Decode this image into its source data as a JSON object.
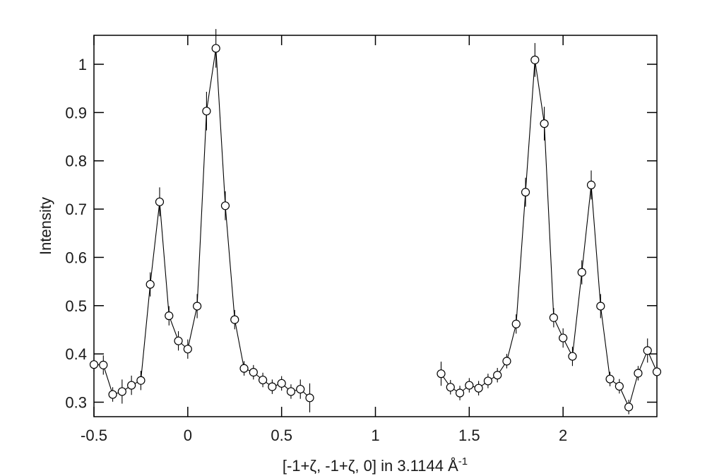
{
  "chart_data": {
    "type": "scatter",
    "title": "",
    "xlabel": "[-1+ζ, -1+ζ, 0] in 3.1144 Å",
    "xlabel_superscript": "-1",
    "ylabel": "Intensity",
    "xlim": [
      -0.5,
      2.5
    ],
    "ylim": [
      0.27,
      1.06
    ],
    "x_ticks": [
      -0.5,
      0,
      0.5,
      1,
      1.5,
      2
    ],
    "x_tick_labels": [
      "-0.5",
      "0",
      "0.5",
      "1",
      "1.5",
      "2"
    ],
    "y_ticks": [
      0.3,
      0.4,
      0.5,
      0.6,
      0.7,
      0.8,
      0.9,
      1.0
    ],
    "y_tick_labels": [
      "0.3",
      "0.4",
      "0.5",
      "0.6",
      "0.7",
      "0.8",
      "0.9",
      "1"
    ],
    "grid": false,
    "marker": "open-circle",
    "line_color": "#000000",
    "series": [
      {
        "points": [
          [
            -0.5,
            0.378,
            0.015
          ],
          [
            -0.45,
            0.377,
            0.02
          ],
          [
            -0.4,
            0.316,
            0.015
          ],
          [
            -0.35,
            0.322,
            0.025
          ],
          [
            -0.3,
            0.335,
            0.02
          ],
          [
            -0.25,
            0.345,
            0.02
          ],
          [
            -0.2,
            0.544,
            0.025
          ],
          [
            -0.15,
            0.715,
            0.03
          ],
          [
            -0.1,
            0.479,
            0.02
          ],
          [
            -0.05,
            0.427,
            0.02
          ],
          [
            0.0,
            0.41,
            0.02
          ],
          [
            0.05,
            0.499,
            0.025
          ],
          [
            0.1,
            0.903,
            0.04
          ],
          [
            0.15,
            1.033,
            0.04
          ],
          [
            0.2,
            0.707,
            0.03
          ],
          [
            0.25,
            0.471,
            0.02
          ],
          [
            0.3,
            0.37,
            0.015
          ],
          [
            0.35,
            0.362,
            0.015
          ],
          [
            0.4,
            0.346,
            0.015
          ],
          [
            0.45,
            0.332,
            0.015
          ],
          [
            0.5,
            0.339,
            0.015
          ],
          [
            0.55,
            0.322,
            0.015
          ],
          [
            0.6,
            0.327,
            0.02
          ],
          [
            0.65,
            0.309,
            0.03
          ]
        ]
      },
      {
        "points": [
          [
            1.35,
            0.359,
            0.025
          ],
          [
            1.4,
            0.331,
            0.015
          ],
          [
            1.45,
            0.319,
            0.015
          ],
          [
            1.5,
            0.335,
            0.015
          ],
          [
            1.55,
            0.329,
            0.015
          ],
          [
            1.6,
            0.344,
            0.015
          ],
          [
            1.65,
            0.356,
            0.015
          ],
          [
            1.7,
            0.385,
            0.015
          ],
          [
            1.75,
            0.462,
            0.02
          ],
          [
            1.8,
            0.735,
            0.03
          ],
          [
            1.85,
            1.009,
            0.035
          ],
          [
            1.9,
            0.877,
            0.035
          ],
          [
            1.95,
            0.475,
            0.02
          ],
          [
            2.0,
            0.433,
            0.02
          ],
          [
            2.05,
            0.395,
            0.02
          ],
          [
            2.1,
            0.569,
            0.025
          ],
          [
            2.15,
            0.75,
            0.03
          ],
          [
            2.2,
            0.499,
            0.025
          ],
          [
            2.25,
            0.348,
            0.015
          ],
          [
            2.3,
            0.333,
            0.015
          ],
          [
            2.35,
            0.29,
            0.015
          ],
          [
            2.4,
            0.36,
            0.015
          ],
          [
            2.45,
            0.407,
            0.025
          ],
          [
            2.5,
            0.363,
            0.015
          ]
        ]
      }
    ]
  }
}
